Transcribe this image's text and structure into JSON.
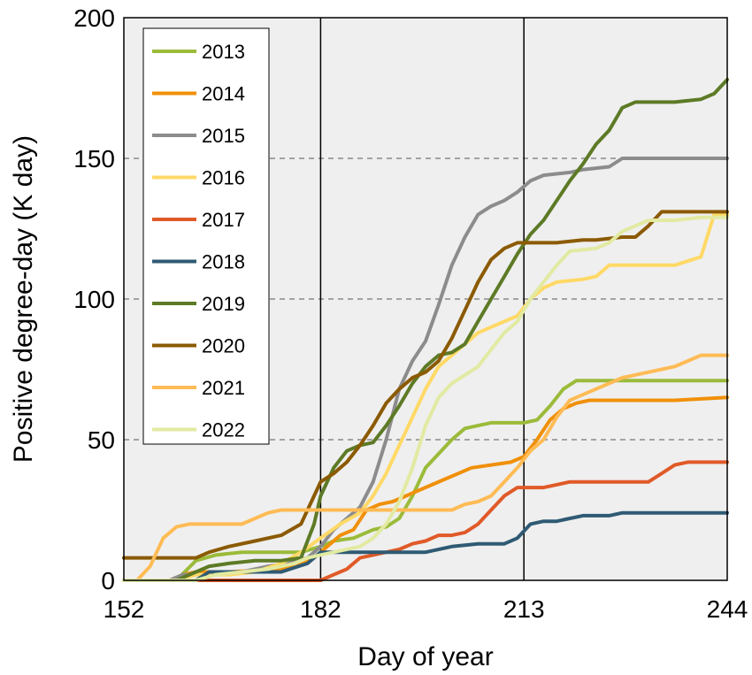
{
  "chart_data": {
    "type": "line",
    "xlabel": "Day of year",
    "ylabel": "Positive degree-day (K day)",
    "xlim": [
      152,
      244
    ],
    "ylim": [
      0,
      200
    ],
    "x_ticks": [
      "152",
      "182",
      "213",
      "244"
    ],
    "y_ticks": [
      "0",
      "50",
      "100",
      "150",
      "200"
    ],
    "grid": "dashed horizontal at 50, 100, 150",
    "reference_lines_x": [
      182,
      213
    ],
    "legend_position": "top-left",
    "background": "#efefef",
    "series": [
      {
        "name": "2013",
        "color": "#9bbb3a",
        "points": [
          [
            152,
            0
          ],
          [
            160,
            0
          ],
          [
            163,
            7
          ],
          [
            166,
            9
          ],
          [
            170,
            10
          ],
          [
            175,
            10
          ],
          [
            179,
            10
          ],
          [
            182,
            12
          ],
          [
            184,
            14
          ],
          [
            187,
            15
          ],
          [
            190,
            18
          ],
          [
            192,
            19
          ],
          [
            194,
            22
          ],
          [
            196,
            30
          ],
          [
            198,
            40
          ],
          [
            200,
            45
          ],
          [
            202,
            50
          ],
          [
            204,
            54
          ],
          [
            206,
            55
          ],
          [
            208,
            56
          ],
          [
            210,
            56
          ],
          [
            213,
            56
          ],
          [
            215,
            57
          ],
          [
            217,
            62
          ],
          [
            219,
            68
          ],
          [
            221,
            71
          ],
          [
            224,
            71
          ],
          [
            230,
            71
          ],
          [
            237,
            71
          ],
          [
            244,
            71
          ]
        ]
      },
      {
        "name": "2014",
        "color": "#f0900a",
        "points": [
          [
            152,
            0
          ],
          [
            159,
            0
          ],
          [
            161,
            2
          ],
          [
            163,
            3
          ],
          [
            168,
            3
          ],
          [
            176,
            4
          ],
          [
            181,
            8
          ],
          [
            183,
            12
          ],
          [
            185,
            16
          ],
          [
            187,
            18
          ],
          [
            189,
            25
          ],
          [
            191,
            27
          ],
          [
            193,
            28
          ],
          [
            195,
            30
          ],
          [
            197,
            32
          ],
          [
            199,
            34
          ],
          [
            201,
            36
          ],
          [
            203,
            38
          ],
          [
            205,
            40
          ],
          [
            208,
            41
          ],
          [
            211,
            42
          ],
          [
            213,
            44
          ],
          [
            215,
            50
          ],
          [
            217,
            57
          ],
          [
            219,
            61
          ],
          [
            221,
            63
          ],
          [
            223,
            64
          ],
          [
            230,
            64
          ],
          [
            236,
            64
          ],
          [
            244,
            65
          ]
        ]
      },
      {
        "name": "2015",
        "color": "#8c8c8c",
        "points": [
          [
            152,
            0
          ],
          [
            159,
            0
          ],
          [
            161,
            2
          ],
          [
            165,
            2
          ],
          [
            170,
            3
          ],
          [
            174,
            5
          ],
          [
            177,
            6
          ],
          [
            180,
            8
          ],
          [
            182,
            12
          ],
          [
            184,
            18
          ],
          [
            186,
            22
          ],
          [
            188,
            26
          ],
          [
            190,
            35
          ],
          [
            192,
            50
          ],
          [
            194,
            68
          ],
          [
            196,
            78
          ],
          [
            198,
            85
          ],
          [
            200,
            98
          ],
          [
            202,
            112
          ],
          [
            204,
            122
          ],
          [
            206,
            130
          ],
          [
            208,
            133
          ],
          [
            210,
            135
          ],
          [
            212,
            138
          ],
          [
            214,
            142
          ],
          [
            216,
            144
          ],
          [
            220,
            145
          ],
          [
            222,
            146
          ],
          [
            226,
            147
          ],
          [
            228,
            150
          ],
          [
            236,
            150
          ],
          [
            244,
            150
          ]
        ]
      },
      {
        "name": "2016",
        "color": "#ffd966",
        "points": [
          [
            152,
            0
          ],
          [
            160,
            0
          ],
          [
            163,
            2
          ],
          [
            168,
            2
          ],
          [
            172,
            3
          ],
          [
            176,
            6
          ],
          [
            179,
            10
          ],
          [
            182,
            15
          ],
          [
            185,
            20
          ],
          [
            188,
            24
          ],
          [
            190,
            30
          ],
          [
            192,
            38
          ],
          [
            194,
            48
          ],
          [
            196,
            58
          ],
          [
            198,
            68
          ],
          [
            200,
            76
          ],
          [
            202,
            80
          ],
          [
            204,
            84
          ],
          [
            206,
            88
          ],
          [
            208,
            90
          ],
          [
            210,
            92
          ],
          [
            212,
            94
          ],
          [
            214,
            100
          ],
          [
            216,
            104
          ],
          [
            218,
            106
          ],
          [
            222,
            107
          ],
          [
            224,
            108
          ],
          [
            226,
            112
          ],
          [
            230,
            112
          ],
          [
            236,
            112
          ],
          [
            240,
            115
          ],
          [
            242,
            130
          ],
          [
            244,
            130
          ]
        ]
      },
      {
        "name": "2017",
        "color": "#e05a28",
        "points": [
          [
            152,
            0
          ],
          [
            176,
            0
          ],
          [
            182,
            0
          ],
          [
            184,
            2
          ],
          [
            186,
            4
          ],
          [
            188,
            8
          ],
          [
            190,
            9
          ],
          [
            192,
            10
          ],
          [
            194,
            11
          ],
          [
            196,
            13
          ],
          [
            198,
            14
          ],
          [
            200,
            16
          ],
          [
            202,
            16
          ],
          [
            204,
            17
          ],
          [
            206,
            20
          ],
          [
            208,
            25
          ],
          [
            210,
            30
          ],
          [
            212,
            33
          ],
          [
            214,
            33
          ],
          [
            216,
            33
          ],
          [
            218,
            34
          ],
          [
            220,
            35
          ],
          [
            222,
            35
          ],
          [
            226,
            35
          ],
          [
            232,
            35
          ],
          [
            234,
            38
          ],
          [
            236,
            41
          ],
          [
            238,
            42
          ],
          [
            244,
            42
          ]
        ]
      },
      {
        "name": "2018",
        "color": "#2f5a73",
        "points": [
          [
            152,
            0
          ],
          [
            163,
            0
          ],
          [
            165,
            3
          ],
          [
            170,
            3
          ],
          [
            176,
            3
          ],
          [
            180,
            6
          ],
          [
            182,
            10
          ],
          [
            186,
            10
          ],
          [
            190,
            10
          ],
          [
            194,
            10
          ],
          [
            198,
            10
          ],
          [
            202,
            12
          ],
          [
            206,
            13
          ],
          [
            210,
            13
          ],
          [
            212,
            15
          ],
          [
            214,
            20
          ],
          [
            216,
            21
          ],
          [
            218,
            21
          ],
          [
            220,
            22
          ],
          [
            222,
            23
          ],
          [
            224,
            23
          ],
          [
            226,
            23
          ],
          [
            228,
            24
          ],
          [
            234,
            24
          ],
          [
            244,
            24
          ]
        ]
      },
      {
        "name": "2019",
        "color": "#5d7a26",
        "points": [
          [
            152,
            0
          ],
          [
            160,
            0
          ],
          [
            163,
            3
          ],
          [
            165,
            5
          ],
          [
            168,
            6
          ],
          [
            172,
            7
          ],
          [
            176,
            7
          ],
          [
            179,
            8
          ],
          [
            181,
            20
          ],
          [
            182,
            30
          ],
          [
            184,
            40
          ],
          [
            186,
            46
          ],
          [
            188,
            48
          ],
          [
            190,
            49
          ],
          [
            192,
            55
          ],
          [
            194,
            62
          ],
          [
            196,
            70
          ],
          [
            198,
            76
          ],
          [
            200,
            80
          ],
          [
            202,
            81
          ],
          [
            204,
            84
          ],
          [
            206,
            92
          ],
          [
            208,
            100
          ],
          [
            210,
            108
          ],
          [
            212,
            116
          ],
          [
            214,
            123
          ],
          [
            216,
            128
          ],
          [
            218,
            135
          ],
          [
            220,
            142
          ],
          [
            222,
            148
          ],
          [
            224,
            155
          ],
          [
            226,
            160
          ],
          [
            228,
            168
          ],
          [
            230,
            170
          ],
          [
            236,
            170
          ],
          [
            240,
            171
          ],
          [
            242,
            173
          ],
          [
            244,
            178
          ]
        ]
      },
      {
        "name": "2020",
        "color": "#8b5a00",
        "points": [
          [
            152,
            8
          ],
          [
            163,
            8
          ],
          [
            165,
            10
          ],
          [
            168,
            12
          ],
          [
            172,
            14
          ],
          [
            176,
            16
          ],
          [
            179,
            20
          ],
          [
            181,
            30
          ],
          [
            182,
            35
          ],
          [
            184,
            38
          ],
          [
            186,
            42
          ],
          [
            188,
            48
          ],
          [
            190,
            55
          ],
          [
            192,
            63
          ],
          [
            194,
            68
          ],
          [
            196,
            72
          ],
          [
            198,
            74
          ],
          [
            200,
            78
          ],
          [
            202,
            86
          ],
          [
            204,
            96
          ],
          [
            206,
            106
          ],
          [
            208,
            114
          ],
          [
            210,
            118
          ],
          [
            212,
            120
          ],
          [
            214,
            120
          ],
          [
            218,
            120
          ],
          [
            222,
            121
          ],
          [
            224,
            121
          ],
          [
            228,
            122
          ],
          [
            230,
            122
          ],
          [
            232,
            126
          ],
          [
            234,
            131
          ],
          [
            244,
            131
          ]
        ]
      },
      {
        "name": "2021",
        "color": "#ffbb55",
        "points": [
          [
            152,
            0
          ],
          [
            154,
            0
          ],
          [
            156,
            5
          ],
          [
            158,
            15
          ],
          [
            160,
            19
          ],
          [
            162,
            20
          ],
          [
            166,
            20
          ],
          [
            170,
            20
          ],
          [
            172,
            22
          ],
          [
            174,
            24
          ],
          [
            176,
            25
          ],
          [
            182,
            25
          ],
          [
            190,
            25
          ],
          [
            198,
            25
          ],
          [
            202,
            25
          ],
          [
            204,
            27
          ],
          [
            206,
            28
          ],
          [
            208,
            30
          ],
          [
            210,
            35
          ],
          [
            212,
            40
          ],
          [
            214,
            46
          ],
          [
            216,
            50
          ],
          [
            218,
            58
          ],
          [
            220,
            64
          ],
          [
            222,
            66
          ],
          [
            226,
            70
          ],
          [
            228,
            72
          ],
          [
            232,
            74
          ],
          [
            234,
            75
          ],
          [
            236,
            76
          ],
          [
            238,
            78
          ],
          [
            240,
            80
          ],
          [
            244,
            80
          ]
        ]
      },
      {
        "name": "2022",
        "color": "#e2eaa2",
        "points": [
          [
            152,
            0
          ],
          [
            163,
            0
          ],
          [
            166,
            2
          ],
          [
            170,
            3
          ],
          [
            174,
            4
          ],
          [
            178,
            6
          ],
          [
            180,
            8
          ],
          [
            184,
            10
          ],
          [
            188,
            12
          ],
          [
            190,
            15
          ],
          [
            192,
            20
          ],
          [
            194,
            28
          ],
          [
            196,
            40
          ],
          [
            198,
            55
          ],
          [
            200,
            65
          ],
          [
            202,
            70
          ],
          [
            204,
            73
          ],
          [
            206,
            76
          ],
          [
            208,
            82
          ],
          [
            210,
            88
          ],
          [
            212,
            92
          ],
          [
            214,
            100
          ],
          [
            216,
            106
          ],
          [
            218,
            112
          ],
          [
            220,
            117
          ],
          [
            224,
            118
          ],
          [
            226,
            120
          ],
          [
            228,
            124
          ],
          [
            232,
            128
          ],
          [
            236,
            128
          ],
          [
            240,
            129
          ],
          [
            244,
            129
          ]
        ]
      }
    ]
  }
}
